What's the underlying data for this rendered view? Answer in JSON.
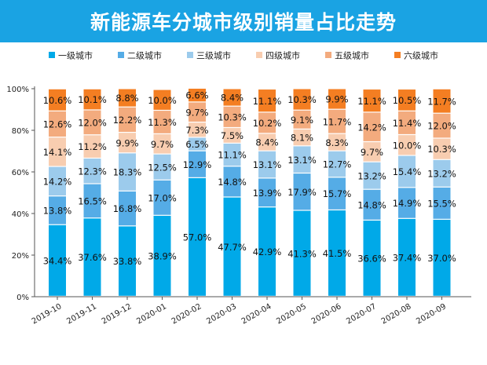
{
  "chart_data": {
    "type": "bar",
    "stacked": true,
    "title": "新能源车分城市级别销量占比走势",
    "categories": [
      "2019-10",
      "2019-11",
      "2019-12",
      "2020-01",
      "2020-02",
      "2020-03",
      "2020-04",
      "2020-05",
      "2020-06",
      "2020-07",
      "2020-08",
      "2020-09"
    ],
    "series": [
      {
        "name": "一级城市",
        "color": "#00a9e8",
        "values": [
          34.4,
          37.6,
          33.8,
          38.9,
          57.0,
          47.7,
          42.9,
          41.3,
          41.5,
          36.6,
          37.4,
          37.0
        ]
      },
      {
        "name": "二级城市",
        "color": "#55ace6",
        "values": [
          13.8,
          16.5,
          16.8,
          17.0,
          12.9,
          14.8,
          13.9,
          17.9,
          15.7,
          14.8,
          14.9,
          15.5
        ]
      },
      {
        "name": "三级城市",
        "color": "#9ccbec",
        "values": [
          14.2,
          12.3,
          18.3,
          12.5,
          6.5,
          11.1,
          13.1,
          13.1,
          12.7,
          13.2,
          15.4,
          13.2
        ]
      },
      {
        "name": "四级城市",
        "color": "#f8cdb0",
        "values": [
          14.1,
          11.2,
          9.9,
          9.7,
          7.3,
          7.5,
          8.4,
          8.1,
          8.3,
          9.7,
          10.0,
          10.3
        ]
      },
      {
        "name": "五级城市",
        "color": "#f3ab7e",
        "values": [
          12.6,
          12.0,
          12.2,
          11.3,
          9.7,
          10.3,
          10.2,
          9.1,
          11.7,
          14.2,
          11.4,
          12.0
        ]
      },
      {
        "name": "六级城市",
        "color": "#f47e22",
        "values": [
          10.6,
          10.1,
          8.8,
          10.0,
          6.6,
          8.4,
          11.1,
          10.3,
          9.9,
          11.1,
          10.5,
          11.7
        ]
      }
    ],
    "ylim": [
      0,
      100
    ],
    "yticks": [
      "0%",
      "20%",
      "40%",
      "60%",
      "80%",
      "100%"
    ],
    "legend": "top",
    "grid": false
  }
}
